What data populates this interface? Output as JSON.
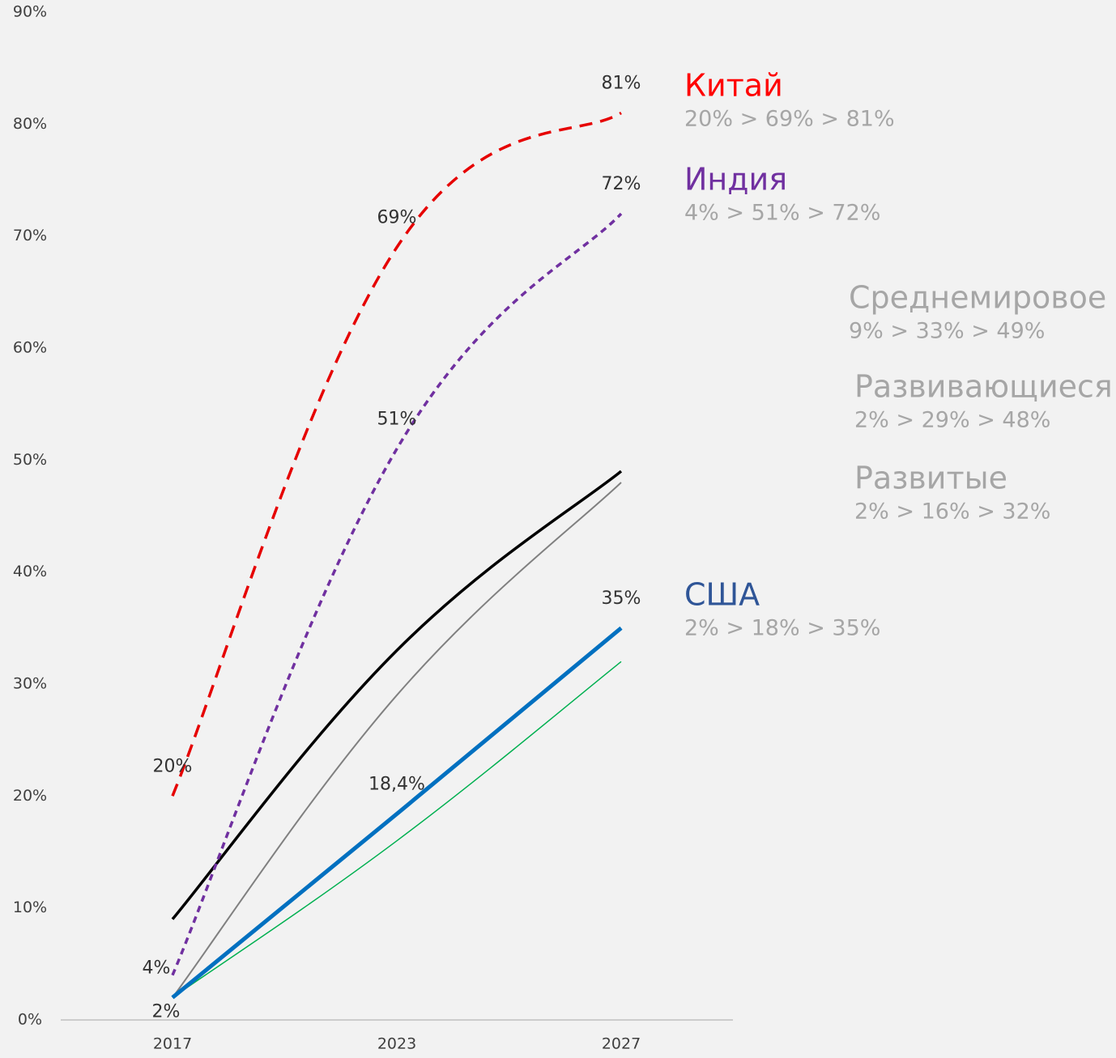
{
  "chart_data": {
    "type": "line",
    "categories": [
      "2017",
      "2023",
      "2027"
    ],
    "ylim": [
      0,
      90
    ],
    "yticks": [
      {
        "value": 0,
        "label": "0%"
      },
      {
        "value": 10,
        "label": "10%"
      },
      {
        "value": 20,
        "label": "20%"
      },
      {
        "value": 30,
        "label": "30%"
      },
      {
        "value": 40,
        "label": "40%"
      },
      {
        "value": 50,
        "label": "50%"
      },
      {
        "value": 60,
        "label": "60%"
      },
      {
        "value": 70,
        "label": "70%"
      },
      {
        "value": 80,
        "label": "80%"
      },
      {
        "value": 90,
        "label": "90%"
      }
    ],
    "grid": false,
    "series": [
      {
        "name": "Китай",
        "color": "#e60000",
        "label_color": "#ff0000",
        "dashed": true,
        "values": [
          20,
          69,
          81
        ],
        "value_labels": [
          "20%",
          "69%",
          "81%"
        ],
        "summary": "20% >  69% > 81%"
      },
      {
        "name": "Индия",
        "color": "#7030a0",
        "label_color": "#7030a0",
        "dashed": true,
        "values": [
          4,
          51,
          72
        ],
        "value_labels": [
          "4%",
          "51%",
          "72%"
        ],
        "summary": "4% >  51% > 72%"
      },
      {
        "name": "Среднемировое",
        "color": "#000000",
        "label_color": "#a6a6a6",
        "dashed": false,
        "values": [
          9,
          33,
          49
        ],
        "summary": "9% >  33% > 49%"
      },
      {
        "name": "Развивающиеся",
        "color": "#808080",
        "label_color": "#a6a6a6",
        "dashed": false,
        "values": [
          2,
          29,
          48
        ],
        "summary": "2% >  29% > 48%"
      },
      {
        "name": "Развитые",
        "color": "#00b050",
        "label_color": "#a6a6a6",
        "dashed": false,
        "values": [
          2,
          16,
          32
        ],
        "summary": "2% >  16% > 32%"
      },
      {
        "name": "США",
        "color": "#0070c0",
        "label_color": "#2f5597",
        "dashed": false,
        "values": [
          2,
          18.4,
          35
        ],
        "value_labels": [
          "2%",
          "18,4%",
          "35%"
        ],
        "summary": "2% >  18% > 35%"
      }
    ]
  }
}
